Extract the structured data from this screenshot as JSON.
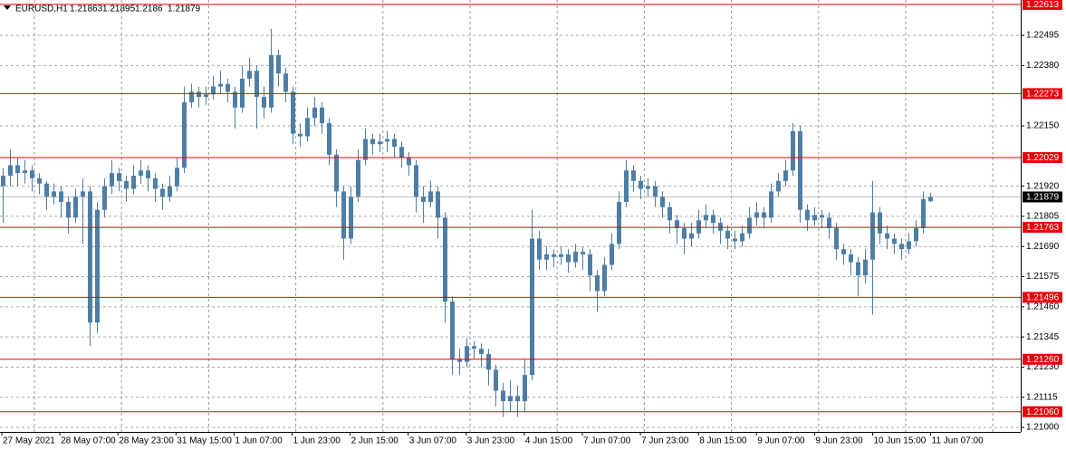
{
  "chart_data": {
    "type": "candlestick",
    "symbol": "EURUSD,H1",
    "color": "#4f7ea5",
    "level_color": "#e8000b",
    "ylim": [
      1.20983,
      1.2263
    ],
    "yticks": [
      1.22495,
      {
        "value": 1.2238,
        "label": "1.22380"
      },
      {
        "value": 1.2215,
        "label": "1.22150"
      },
      {
        "value": 1.2192,
        "label": "1.21920"
      },
      1.21805,
      {
        "value": 1.2169,
        "label": "1.21690"
      },
      1.21575,
      {
        "value": 1.2146,
        "label": "1.21460"
      },
      1.21345,
      {
        "value": 1.2123,
        "label": "1.21230"
      },
      1.21115,
      {
        "value": 1.21,
        "label": "1.21000"
      }
    ],
    "levels": [
      1.22613,
      1.22273,
      1.22029,
      1.21763,
      1.21496,
      {
        "value": 1.2126,
        "label": "1.21260"
      },
      {
        "value": 1.2106,
        "label": "1.21060"
      }
    ],
    "grid": true,
    "x_labels": [
      "27 May 2021",
      "28 May 07:00",
      "28 May 23:00",
      "31 May 15:00",
      "1 Jun 07:00",
      "1 Jun 23:00",
      "2 Jun 15:00",
      "3 Jun 07:00",
      "3 Jun 23:00",
      "4 Jun 15:00",
      "7 Jun 07:00",
      "7 Jun 23:00",
      "8 Jun 15:00",
      "9 Jun 07:00",
      "9 Jun 23:00",
      "10 Jun 15:00",
      "11 Jun 07:00"
    ],
    "ohlc": [
      [
        1.2192,
        1.2199,
        1.2178,
        1.2196
      ],
      [
        1.2196,
        1.2206,
        1.2192,
        1.22
      ],
      [
        1.22,
        1.2203,
        1.2192,
        1.2197
      ],
      [
        1.2197,
        1.2202,
        1.2193,
        1.2198
      ],
      [
        1.2198,
        1.22,
        1.219,
        1.2195
      ],
      [
        1.2195,
        1.2197,
        1.2189,
        1.2193
      ],
      [
        1.2193,
        1.2194,
        1.2183,
        1.2188
      ],
      [
        1.2188,
        1.2193,
        1.2185,
        1.219
      ],
      [
        1.219,
        1.2192,
        1.218,
        1.2186
      ],
      [
        1.2186,
        1.2188,
        1.2174,
        1.218
      ],
      [
        1.218,
        1.2191,
        1.2178,
        1.2188
      ],
      [
        1.2188,
        1.2195,
        1.217,
        1.219
      ],
      [
        1.219,
        1.2192,
        1.2131,
        1.214
      ],
      [
        1.214,
        1.2186,
        1.2136,
        1.2183
      ],
      [
        1.2183,
        1.2195,
        1.218,
        1.2192
      ],
      [
        1.2192,
        1.2202,
        1.2189,
        1.2197
      ],
      [
        1.2197,
        1.2199,
        1.219,
        1.2194
      ],
      [
        1.2194,
        1.2196,
        1.2186,
        1.2191
      ],
      [
        1.2191,
        1.22,
        1.2189,
        1.2196
      ],
      [
        1.2196,
        1.2202,
        1.2193,
        1.2198
      ],
      [
        1.2198,
        1.22,
        1.219,
        1.2195
      ],
      [
        1.2195,
        1.2197,
        1.2186,
        1.2191
      ],
      [
        1.2191,
        1.2193,
        1.2183,
        1.2188
      ],
      [
        1.2188,
        1.2196,
        1.2186,
        1.2192
      ],
      [
        1.2192,
        1.2203,
        1.219,
        1.2199
      ],
      [
        1.2199,
        1.223,
        1.2197,
        1.2224
      ],
      [
        1.2224,
        1.2231,
        1.2222,
        1.2228
      ],
      [
        1.2228,
        1.223,
        1.2222,
        1.2226
      ],
      [
        1.2226,
        1.223,
        1.2223,
        1.2227
      ],
      [
        1.2227,
        1.2234,
        1.2225,
        1.223
      ],
      [
        1.223,
        1.2236,
        1.2227,
        1.2231
      ],
      [
        1.2231,
        1.2233,
        1.2224,
        1.2228
      ],
      [
        1.2228,
        1.223,
        1.2214,
        1.2222
      ],
      [
        1.2222,
        1.2238,
        1.222,
        1.2233
      ],
      [
        1.2233,
        1.2241,
        1.223,
        1.2236
      ],
      [
        1.2236,
        1.2238,
        1.2214,
        1.2226
      ],
      [
        1.2226,
        1.223,
        1.2218,
        1.2222
      ],
      [
        1.2222,
        1.2252,
        1.222,
        1.2242
      ],
      [
        1.2242,
        1.2244,
        1.223,
        1.2235
      ],
      [
        1.2235,
        1.2237,
        1.2224,
        1.2228
      ],
      [
        1.2228,
        1.223,
        1.2208,
        1.2212
      ],
      [
        1.2212,
        1.2216,
        1.2207,
        1.2211
      ],
      [
        1.2211,
        1.2222,
        1.2209,
        1.2218
      ],
      [
        1.2218,
        1.2226,
        1.2215,
        1.2222
      ],
      [
        1.2222,
        1.2224,
        1.2212,
        1.2216
      ],
      [
        1.2216,
        1.2218,
        1.22,
        1.2204
      ],
      [
        1.2204,
        1.2206,
        1.2184,
        1.219
      ],
      [
        1.219,
        1.2192,
        1.2164,
        1.2172
      ],
      [
        1.2172,
        1.2192,
        1.217,
        1.2188
      ],
      [
        1.2188,
        1.2206,
        1.2186,
        1.2202
      ],
      [
        1.2202,
        1.2214,
        1.22,
        1.221
      ],
      [
        1.221,
        1.2212,
        1.2204,
        1.2208
      ],
      [
        1.2208,
        1.2212,
        1.2205,
        1.2209
      ],
      [
        1.2209,
        1.2213,
        1.2205,
        1.221
      ],
      [
        1.221,
        1.2212,
        1.2203,
        1.2207
      ],
      [
        1.2207,
        1.2209,
        1.2199,
        1.2203
      ],
      [
        1.2203,
        1.2205,
        1.2196,
        1.22
      ],
      [
        1.22,
        1.2202,
        1.2182,
        1.2188
      ],
      [
        1.2188,
        1.2192,
        1.2178,
        1.2186
      ],
      [
        1.2186,
        1.2194,
        1.2184,
        1.219
      ],
      [
        1.219,
        1.2192,
        1.2172,
        1.218
      ],
      [
        1.218,
        1.2182,
        1.214,
        1.2148
      ],
      [
        1.2148,
        1.215,
        1.212,
        1.2126
      ],
      [
        1.2126,
        1.213,
        1.212,
        1.2125
      ],
      [
        1.2125,
        1.2134,
        1.2123,
        1.2131
      ],
      [
        1.2131,
        1.2133,
        1.2126,
        1.213
      ],
      [
        1.213,
        1.2132,
        1.2123,
        1.2128
      ],
      [
        1.2128,
        1.213,
        1.2116,
        1.2122
      ],
      [
        1.2122,
        1.2124,
        1.2108,
        1.2114
      ],
      [
        1.2114,
        1.2117,
        1.2104,
        1.211
      ],
      [
        1.211,
        1.2118,
        1.2106,
        1.2112
      ],
      [
        1.2112,
        1.2116,
        1.2104,
        1.211
      ],
      [
        1.211,
        1.2126,
        1.2106,
        1.212
      ],
      [
        1.212,
        1.2183,
        1.2118,
        1.2172
      ],
      [
        1.2172,
        1.2175,
        1.216,
        1.2164
      ],
      [
        1.2164,
        1.2169,
        1.216,
        1.2166
      ],
      [
        1.2166,
        1.2168,
        1.2161,
        1.2165
      ],
      [
        1.2165,
        1.2169,
        1.2162,
        1.2166
      ],
      [
        1.2166,
        1.2168,
        1.2159,
        1.2163
      ],
      [
        1.2163,
        1.217,
        1.2161,
        1.2167
      ],
      [
        1.2167,
        1.2169,
        1.216,
        1.2166
      ],
      [
        1.2166,
        1.2168,
        1.2152,
        1.2158
      ],
      [
        1.2158,
        1.216,
        1.2144,
        1.2152
      ],
      [
        1.2152,
        1.2165,
        1.215,
        1.2162
      ],
      [
        1.2162,
        1.2174,
        1.216,
        1.217
      ],
      [
        1.217,
        1.219,
        1.2168,
        1.2186
      ],
      [
        1.2186,
        1.2202,
        1.2184,
        1.2198
      ],
      [
        1.2198,
        1.22,
        1.219,
        1.2194
      ],
      [
        1.2194,
        1.2196,
        1.2187,
        1.2191
      ],
      [
        1.2191,
        1.2195,
        1.2188,
        1.2192
      ],
      [
        1.2192,
        1.2194,
        1.2184,
        1.2188
      ],
      [
        1.2188,
        1.219,
        1.218,
        1.2184
      ],
      [
        1.2184,
        1.2186,
        1.2174,
        1.2179
      ],
      [
        1.2179,
        1.2181,
        1.217,
        1.2176
      ],
      [
        1.2176,
        1.2178,
        1.2166,
        1.2172
      ],
      [
        1.2172,
        1.2178,
        1.2169,
        1.2174
      ],
      [
        1.2174,
        1.2183,
        1.2172,
        1.2179
      ],
      [
        1.2179,
        1.2185,
        1.2176,
        1.2181
      ],
      [
        1.2181,
        1.2183,
        1.2174,
        1.2178
      ],
      [
        1.2178,
        1.218,
        1.217,
        1.2175
      ],
      [
        1.2175,
        1.2177,
        1.2168,
        1.2172
      ],
      [
        1.2172,
        1.2175,
        1.2168,
        1.2171
      ],
      [
        1.2171,
        1.2177,
        1.2169,
        1.2174
      ],
      [
        1.2174,
        1.2184,
        1.2172,
        1.218
      ],
      [
        1.218,
        1.2186,
        1.2177,
        1.2182
      ],
      [
        1.2182,
        1.2184,
        1.2176,
        1.218
      ],
      [
        1.218,
        1.2193,
        1.2178,
        1.219
      ],
      [
        1.219,
        1.2197,
        1.2188,
        1.2194
      ],
      [
        1.2194,
        1.2202,
        1.2192,
        1.2198
      ],
      [
        1.2198,
        1.2216,
        1.2196,
        1.2213
      ],
      [
        1.2213,
        1.2215,
        1.2178,
        1.2183
      ],
      [
        1.2183,
        1.2185,
        1.2175,
        1.2179
      ],
      [
        1.2179,
        1.2184,
        1.2177,
        1.2181
      ],
      [
        1.2181,
        1.2183,
        1.2176,
        1.218
      ],
      [
        1.218,
        1.2182,
        1.2172,
        1.2176
      ],
      [
        1.2176,
        1.2178,
        1.2164,
        1.2168
      ],
      [
        1.2168,
        1.217,
        1.2162,
        1.2166
      ],
      [
        1.2166,
        1.2168,
        1.2158,
        1.2163
      ],
      [
        1.2163,
        1.2165,
        1.215,
        1.2158
      ],
      [
        1.2158,
        1.2168,
        1.2155,
        1.2164
      ],
      [
        1.2164,
        1.2194,
        1.2143,
        1.2182
      ],
      [
        1.2182,
        1.2184,
        1.217,
        1.2174
      ],
      [
        1.2174,
        1.2177,
        1.2168,
        1.2172
      ],
      [
        1.2172,
        1.2174,
        1.2166,
        1.217
      ],
      [
        1.217,
        1.2172,
        1.2164,
        1.2168
      ],
      [
        1.2168,
        1.2174,
        1.2166,
        1.2171
      ],
      [
        1.2171,
        1.2179,
        1.2169,
        1.2176
      ],
      [
        1.2176,
        1.219,
        1.2174,
        1.2187
      ],
      [
        1.21863,
        1.21895,
        1.2186,
        1.21879
      ]
    ]
  }
}
